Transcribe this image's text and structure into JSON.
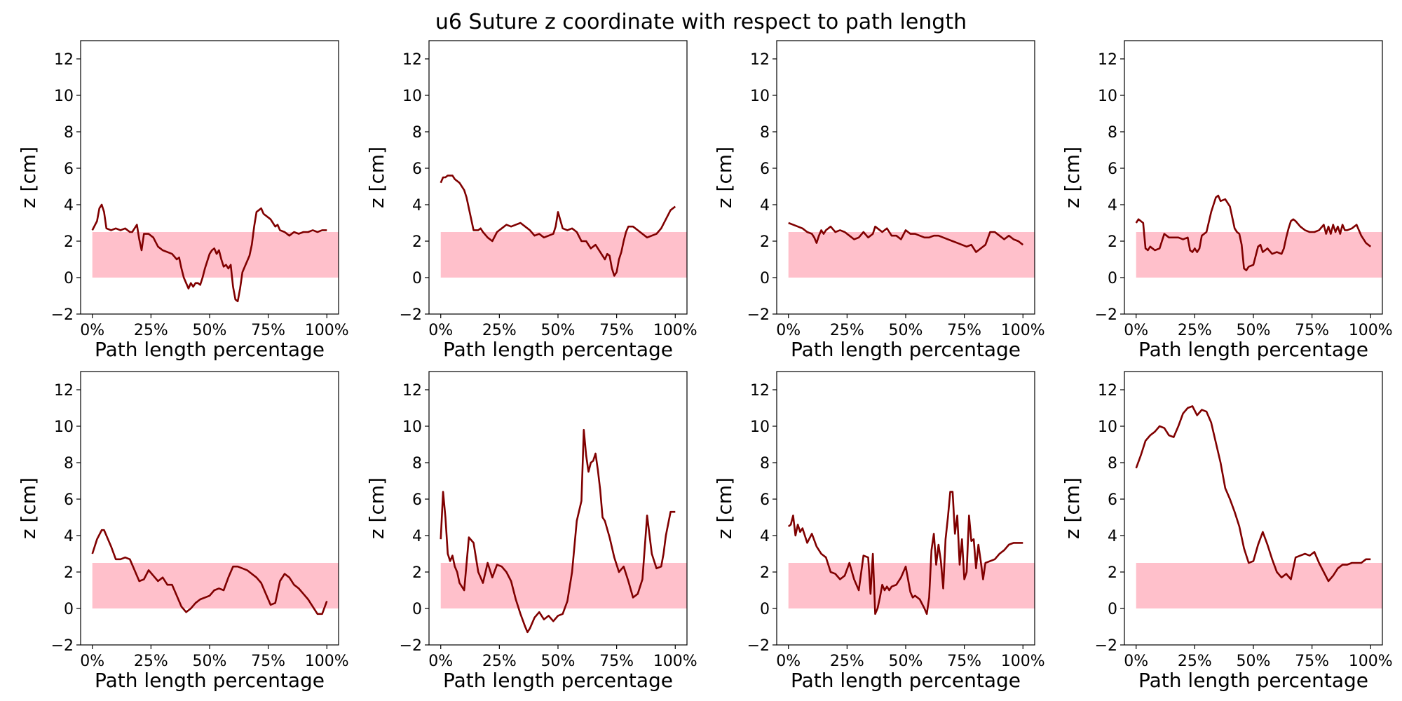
{
  "figure": {
    "title": "u6 Suture z coordinate with respect to path length"
  },
  "chart_data": {
    "type": "line",
    "layout": "grid 2 rows x 4 columns",
    "xlabel": "Path length percentage",
    "ylabel": "z [cm]",
    "xlim": [
      -5,
      105
    ],
    "ylim": [
      -2,
      13
    ],
    "x_ticks": [
      0,
      25,
      50,
      75,
      100
    ],
    "x_tick_labels": [
      "0%",
      "25%",
      "50%",
      "75%",
      "100%"
    ],
    "y_ticks": [
      -2,
      0,
      2,
      4,
      6,
      8,
      10,
      12
    ],
    "y_tick_labels": [
      "−2",
      "0",
      "2",
      "4",
      "6",
      "8",
      "10",
      "12"
    ],
    "grid": false,
    "band": {
      "y0": 0,
      "y1": 2.5,
      "x0": 0,
      "x1": 105,
      "color": "#ffc0cb"
    },
    "line_color": "#800000",
    "panels": [
      {
        "x": [
          0,
          2,
          3,
          4,
          5,
          6,
          8,
          10,
          12,
          14,
          16,
          17,
          18,
          19,
          20,
          21,
          22,
          24,
          26,
          28,
          30,
          32,
          34,
          36,
          37,
          38,
          39,
          40,
          41,
          42,
          43,
          44,
          45,
          46,
          47,
          48,
          50,
          51,
          52,
          53,
          54,
          55,
          56,
          57,
          58,
          59,
          60,
          61,
          62,
          63,
          64,
          65,
          66,
          67,
          68,
          69,
          70,
          71,
          72,
          73,
          74,
          75,
          76,
          77,
          78,
          79,
          80,
          82,
          84,
          86,
          88,
          90,
          92,
          94,
          96,
          98,
          100
        ],
        "y": [
          2.6,
          3.1,
          3.8,
          4.0,
          3.6,
          2.7,
          2.6,
          2.7,
          2.6,
          2.7,
          2.5,
          2.5,
          2.7,
          2.9,
          2.1,
          1.5,
          2.4,
          2.4,
          2.2,
          1.7,
          1.5,
          1.4,
          1.3,
          1.0,
          1.1,
          0.5,
          0.0,
          -0.3,
          -0.6,
          -0.3,
          -0.5,
          -0.3,
          -0.3,
          -0.4,
          0.0,
          0.5,
          1.3,
          1.5,
          1.6,
          1.3,
          1.5,
          1.0,
          0.6,
          0.7,
          0.5,
          0.7,
          -0.5,
          -1.2,
          -1.3,
          -0.6,
          0.3,
          0.6,
          0.9,
          1.2,
          1.8,
          2.8,
          3.6,
          3.7,
          3.8,
          3.5,
          3.4,
          3.3,
          3.2,
          3.0,
          2.8,
          2.9,
          2.6,
          2.5,
          2.3,
          2.5,
          2.4,
          2.5,
          2.5,
          2.6,
          2.5,
          2.6,
          2.6
        ]
      },
      {
        "x": [
          0,
          1,
          2,
          3,
          4,
          5,
          6,
          8,
          10,
          11,
          12,
          13,
          14,
          15,
          16,
          17,
          18,
          20,
          22,
          24,
          26,
          28,
          30,
          32,
          34,
          36,
          38,
          40,
          42,
          44,
          46,
          48,
          49,
          50,
          52,
          54,
          56,
          58,
          60,
          62,
          64,
          66,
          68,
          70,
          71,
          72,
          73,
          74,
          75,
          76,
          77,
          78,
          79,
          80,
          82,
          84,
          86,
          88,
          90,
          92,
          94,
          96,
          98,
          100
        ],
        "y": [
          5.2,
          5.5,
          5.5,
          5.6,
          5.6,
          5.6,
          5.4,
          5.2,
          4.8,
          4.4,
          3.8,
          3.2,
          2.6,
          2.6,
          2.6,
          2.7,
          2.5,
          2.2,
          2.0,
          2.5,
          2.7,
          2.9,
          2.8,
          2.9,
          3.0,
          2.8,
          2.6,
          2.3,
          2.4,
          2.2,
          2.3,
          2.4,
          2.8,
          3.6,
          2.7,
          2.6,
          2.7,
          2.5,
          2.0,
          2.0,
          1.6,
          1.8,
          1.4,
          1.0,
          1.3,
          1.2,
          0.5,
          0.1,
          0.3,
          1.0,
          1.4,
          2.0,
          2.5,
          2.8,
          2.8,
          2.6,
          2.4,
          2.2,
          2.3,
          2.4,
          2.7,
          3.2,
          3.7,
          3.9
        ]
      },
      {
        "x": [
          0,
          2,
          4,
          6,
          8,
          10,
          11,
          12,
          13,
          14,
          15,
          16,
          18,
          20,
          22,
          24,
          26,
          28,
          30,
          32,
          34,
          36,
          37,
          38,
          40,
          42,
          44,
          46,
          48,
          50,
          52,
          54,
          56,
          58,
          60,
          62,
          64,
          66,
          68,
          70,
          72,
          74,
          76,
          78,
          80,
          82,
          84,
          86,
          88,
          90,
          92,
          94,
          96,
          98,
          100
        ],
        "y": [
          3.0,
          2.9,
          2.8,
          2.7,
          2.5,
          2.4,
          2.2,
          1.9,
          2.3,
          2.6,
          2.4,
          2.6,
          2.8,
          2.5,
          2.6,
          2.5,
          2.3,
          2.1,
          2.2,
          2.5,
          2.2,
          2.4,
          2.8,
          2.7,
          2.5,
          2.7,
          2.3,
          2.3,
          2.1,
          2.6,
          2.4,
          2.4,
          2.3,
          2.2,
          2.2,
          2.3,
          2.3,
          2.2,
          2.1,
          2.0,
          1.9,
          1.8,
          1.7,
          1.8,
          1.4,
          1.6,
          1.8,
          2.5,
          2.5,
          2.3,
          2.1,
          2.3,
          2.1,
          2.0,
          1.8
        ]
      },
      {
        "x": [
          0,
          1,
          2,
          3,
          4,
          5,
          6,
          8,
          10,
          11,
          12,
          13,
          14,
          16,
          18,
          20,
          22,
          23,
          24,
          25,
          26,
          27,
          28,
          30,
          32,
          33,
          34,
          35,
          36,
          38,
          40,
          41,
          42,
          43,
          44,
          45,
          46,
          47,
          48,
          50,
          52,
          53,
          54,
          56,
          58,
          60,
          62,
          63,
          64,
          65,
          66,
          67,
          68,
          70,
          72,
          74,
          76,
          78,
          80,
          81,
          82,
          83,
          84,
          85,
          86,
          87,
          88,
          89,
          90,
          92,
          94,
          96,
          98,
          100
        ],
        "y": [
          3.0,
          3.2,
          3.1,
          3.0,
          1.6,
          1.5,
          1.7,
          1.5,
          1.6,
          2.0,
          2.4,
          2.3,
          2.2,
          2.2,
          2.2,
          2.1,
          2.2,
          1.5,
          1.4,
          1.6,
          1.4,
          1.6,
          2.3,
          2.5,
          3.6,
          4.0,
          4.4,
          4.5,
          4.2,
          4.3,
          3.9,
          3.3,
          2.7,
          2.5,
          2.4,
          1.8,
          0.5,
          0.4,
          0.6,
          0.7,
          1.7,
          1.8,
          1.4,
          1.6,
          1.3,
          1.4,
          1.3,
          1.6,
          2.2,
          2.7,
          3.1,
          3.2,
          3.1,
          2.8,
          2.6,
          2.5,
          2.5,
          2.6,
          2.9,
          2.4,
          2.8,
          2.4,
          2.9,
          2.5,
          2.8,
          2.4,
          2.9,
          2.6,
          2.6,
          2.7,
          2.9,
          2.3,
          1.9,
          1.7
        ]
      },
      {
        "x": [
          0,
          2,
          4,
          5,
          6,
          8,
          10,
          12,
          14,
          16,
          18,
          20,
          22,
          24,
          26,
          28,
          30,
          32,
          34,
          36,
          38,
          40,
          42,
          44,
          46,
          48,
          50,
          52,
          54,
          56,
          58,
          60,
          62,
          64,
          66,
          68,
          70,
          72,
          74,
          76,
          78,
          80,
          82,
          84,
          86,
          88,
          90,
          92,
          94,
          96,
          98,
          100
        ],
        "y": [
          3.0,
          3.8,
          4.3,
          4.3,
          4.0,
          3.4,
          2.7,
          2.7,
          2.8,
          2.7,
          2.1,
          1.5,
          1.6,
          2.1,
          1.8,
          1.5,
          1.7,
          1.3,
          1.3,
          0.7,
          0.1,
          -0.2,
          0.0,
          0.3,
          0.5,
          0.6,
          0.7,
          1.0,
          1.1,
          1.0,
          1.7,
          2.3,
          2.3,
          2.2,
          2.1,
          1.9,
          1.7,
          1.4,
          0.8,
          0.2,
          0.3,
          1.5,
          1.9,
          1.7,
          1.3,
          1.1,
          0.8,
          0.5,
          0.1,
          -0.3,
          -0.3,
          0.4
        ]
      },
      {
        "x": [
          0,
          1,
          2,
          3,
          4,
          5,
          6,
          7,
          8,
          10,
          12,
          14,
          16,
          18,
          20,
          22,
          24,
          26,
          28,
          30,
          32,
          34,
          36,
          37,
          38,
          40,
          42,
          44,
          46,
          48,
          50,
          52,
          54,
          56,
          58,
          60,
          61,
          62,
          63,
          64,
          65,
          66,
          67,
          68,
          69,
          70,
          72,
          74,
          76,
          78,
          80,
          82,
          84,
          86,
          88,
          90,
          92,
          94,
          95,
          96,
          98,
          100
        ],
        "y": [
          3.8,
          6.4,
          5.0,
          3.0,
          2.6,
          2.9,
          2.3,
          2.0,
          1.4,
          1.0,
          3.9,
          3.6,
          2.0,
          1.4,
          2.5,
          1.7,
          2.4,
          2.3,
          2.0,
          1.5,
          0.5,
          -0.3,
          -1.0,
          -1.3,
          -1.1,
          -0.5,
          -0.2,
          -0.6,
          -0.4,
          -0.7,
          -0.4,
          -0.3,
          0.4,
          2.0,
          4.8,
          5.9,
          9.8,
          8.4,
          7.5,
          8.0,
          8.1,
          8.5,
          7.6,
          6.5,
          5.0,
          4.8,
          3.9,
          2.8,
          2.0,
          2.3,
          1.5,
          0.6,
          0.8,
          1.6,
          5.1,
          3.0,
          2.2,
          2.3,
          3.0,
          4.0,
          5.3,
          5.3
        ]
      },
      {
        "x": [
          0,
          1,
          2,
          3,
          4,
          5,
          6,
          8,
          10,
          12,
          14,
          16,
          18,
          20,
          22,
          24,
          26,
          28,
          30,
          32,
          34,
          35,
          36,
          37,
          38,
          39,
          40,
          41,
          42,
          43,
          44,
          46,
          48,
          50,
          52,
          53,
          54,
          56,
          58,
          59,
          60,
          61,
          62,
          63,
          64,
          65,
          66,
          67,
          68,
          69,
          70,
          71,
          72,
          73,
          74,
          75,
          76,
          77,
          78,
          79,
          80,
          81,
          82,
          83,
          84,
          86,
          88,
          90,
          92,
          94,
          96,
          98,
          100
        ],
        "y": [
          4.5,
          4.6,
          5.1,
          4.0,
          4.6,
          4.2,
          4.4,
          3.6,
          4.1,
          3.4,
          3.0,
          2.8,
          2.0,
          1.9,
          1.6,
          1.8,
          2.5,
          1.6,
          1.0,
          2.9,
          2.8,
          0.8,
          3.0,
          -0.3,
          0.0,
          0.6,
          1.3,
          1.0,
          1.2,
          1.0,
          1.2,
          1.3,
          1.7,
          2.3,
          0.9,
          0.6,
          0.7,
          0.5,
          0.0,
          -0.3,
          0.6,
          3.2,
          4.1,
          2.4,
          3.5,
          2.6,
          1.1,
          3.8,
          5.0,
          6.4,
          6.4,
          4.1,
          5.1,
          2.4,
          3.8,
          1.6,
          2.0,
          5.1,
          3.7,
          3.8,
          2.2,
          3.5,
          2.6,
          1.6,
          2.5,
          2.6,
          2.7,
          3.0,
          3.2,
          3.5,
          3.6,
          3.6,
          3.6
        ]
      },
      {
        "x": [
          0,
          2,
          4,
          6,
          8,
          10,
          12,
          14,
          16,
          18,
          20,
          22,
          24,
          26,
          28,
          30,
          32,
          34,
          36,
          38,
          40,
          42,
          44,
          46,
          48,
          50,
          52,
          54,
          56,
          58,
          60,
          62,
          64,
          66,
          68,
          70,
          72,
          74,
          76,
          78,
          80,
          82,
          84,
          86,
          88,
          90,
          92,
          94,
          96,
          98,
          100
        ],
        "y": [
          7.7,
          8.4,
          9.2,
          9.5,
          9.7,
          10.0,
          9.9,
          9.5,
          9.4,
          10.0,
          10.7,
          11.0,
          11.1,
          10.6,
          10.9,
          10.8,
          10.2,
          9.1,
          8.0,
          6.6,
          6.0,
          5.3,
          4.5,
          3.3,
          2.5,
          2.6,
          3.5,
          4.2,
          3.5,
          2.7,
          2.0,
          1.7,
          1.9,
          1.6,
          2.8,
          2.9,
          3.0,
          2.9,
          3.1,
          2.5,
          2.0,
          1.5,
          1.8,
          2.2,
          2.4,
          2.4,
          2.5,
          2.5,
          2.5,
          2.7,
          2.7
        ]
      }
    ]
  }
}
